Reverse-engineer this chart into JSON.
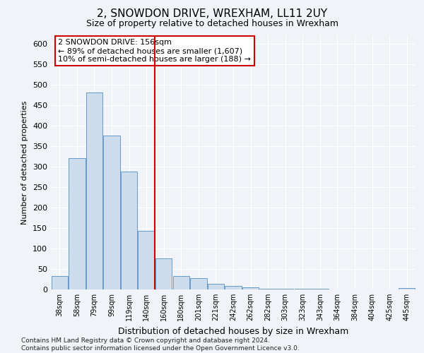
{
  "title_line1": "2, SNOWDON DRIVE, WREXHAM, LL11 2UY",
  "title_line2": "Size of property relative to detached houses in Wrexham",
  "xlabel": "Distribution of detached houses by size in Wrexham",
  "ylabel": "Number of detached properties",
  "bar_labels": [
    "38sqm",
    "58sqm",
    "79sqm",
    "99sqm",
    "119sqm",
    "140sqm",
    "160sqm",
    "180sqm",
    "201sqm",
    "221sqm",
    "242sqm",
    "262sqm",
    "282sqm",
    "303sqm",
    "323sqm",
    "343sqm",
    "364sqm",
    "384sqm",
    "404sqm",
    "425sqm",
    "445sqm"
  ],
  "bar_values": [
    33,
    320,
    480,
    375,
    288,
    143,
    75,
    33,
    28,
    14,
    8,
    5,
    2,
    1,
    1,
    1,
    0,
    0,
    0,
    0,
    3
  ],
  "bar_color": "#cddcec",
  "bar_edge_color": "#6699cc",
  "annotation_box_text": "2 SNOWDON DRIVE: 156sqm\n← 89% of detached houses are smaller (1,607)\n10% of semi-detached houses are larger (188) →",
  "annotation_box_color": "white",
  "annotation_box_edge_color": "#cc0000",
  "vline_x": 5.5,
  "vline_color": "#cc0000",
  "ylim": [
    0,
    620
  ],
  "yticks": [
    0,
    50,
    100,
    150,
    200,
    250,
    300,
    350,
    400,
    450,
    500,
    550,
    600
  ],
  "footnote": "Contains HM Land Registry data © Crown copyright and database right 2024.\nContains public sector information licensed under the Open Government Licence v3.0.",
  "bg_color": "#f0f4f8",
  "grid_color": "white",
  "title1_fontsize": 11,
  "title2_fontsize": 9,
  "xlabel_fontsize": 9,
  "ylabel_fontsize": 8,
  "annot_fontsize": 8,
  "ytick_fontsize": 8,
  "xtick_fontsize": 7
}
